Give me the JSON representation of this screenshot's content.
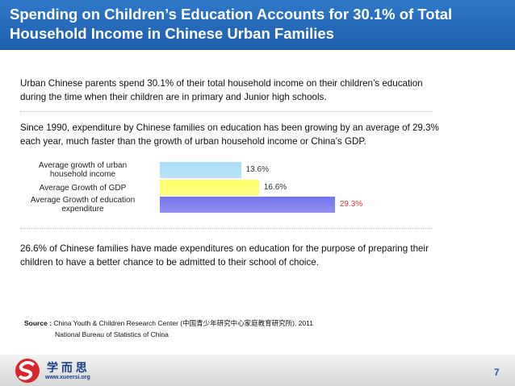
{
  "header": {
    "title": "Spending on Children’s Education Accounts for 30.1% of Total Household Income in Chinese Urban Families"
  },
  "paragraphs": [
    "Urban Chinese parents spend 30.1% of their total household income on their children’s education during the time when their children are in primary and Junior high schools.",
    "Since 1990, expenditure by Chinese families on education has been growing by an average of 29.3% each year, much faster than the growth of urban household income or China’s GDP.",
    "26.6% of Chinese families have made expenditures on education for the purpose of preparing their children to have a better chance to be admitted to their school of choice."
  ],
  "chart_data": {
    "type": "bar",
    "orientation": "horizontal",
    "categories": [
      "Average growth of urban household income",
      "Average Growth of GDP",
      "Average Growth of education expenditure"
    ],
    "values": [
      13.6,
      16.6,
      29.3
    ],
    "value_labels": [
      "13.6%",
      "16.6%",
      "29.3%"
    ],
    "colors": [
      "#a8dcf7",
      "#ffff66",
      "#7474ee"
    ],
    "label_colors": [
      "#333333",
      "#333333",
      "#e03030"
    ]
  },
  "source": {
    "label": "Source :",
    "lines": [
      "China Youth & Children Research Center (中国青少年研究中心家庭教育研究所), 2011",
      "National Bureau of Statistics of China"
    ]
  },
  "logo": {
    "name": "学 而 思",
    "url": "www.xueersi.org"
  },
  "page_number": "7"
}
